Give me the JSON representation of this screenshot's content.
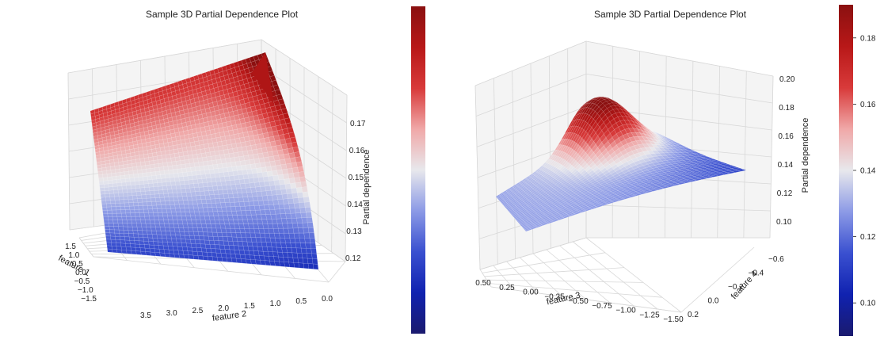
{
  "colors": {
    "colormap": [
      "#1a1a6e",
      "#1022b0",
      "#3a50d0",
      "#8c9ae6",
      "#e8e8ec",
      "#f0a8a8",
      "#d83a3a",
      "#b81818",
      "#8a1010"
    ],
    "background": "#ffffff",
    "grid": "#d8d8d8"
  },
  "chart_data": [
    {
      "type": "surface3d",
      "title": "Sample 3D Partial Dependence Plot",
      "xlabel": "feature 1",
      "ylabel": "feature 2",
      "zlabel": "Partial dependence",
      "x_ticks": [
        "1.5",
        "1.0",
        "0.5",
        "0.0",
        "−0.5",
        "−1.0",
        "−1.5"
      ],
      "y_ticks": [
        "3.5",
        "3.0",
        "2.5",
        "2.0",
        "1.5",
        "1.0",
        "0.5",
        "0.0"
      ],
      "z_ticks": [
        "0.12",
        "0.13",
        "0.14",
        "0.15",
        "0.16",
        "0.17"
      ],
      "xlim": [
        -1.5,
        1.5
      ],
      "ylim": [
        0.0,
        3.5
      ],
      "zlim": [
        0.115,
        0.175
      ],
      "surface_corners": {
        "feature1_low_feature2_high": 0.128,
        "feature1_high_feature2_high": 0.162,
        "feature1_high_feature2_low": 0.19,
        "feature1_low_feature2_low": 0.117
      },
      "colorbar": {
        "ticks": [],
        "range": [
          0.115,
          0.175
        ]
      },
      "grid": true
    },
    {
      "type": "surface3d",
      "title": "Sample 3D Partial Dependence Plot",
      "xlabel": "feature 3",
      "ylabel": "feature 4",
      "zlabel": "Partial dependence",
      "x_ticks": [
        "0.50",
        "0.25",
        "0.00",
        "−0.25",
        "−0.50",
        "−0.75",
        "−1.00",
        "−1.25",
        "−1.50"
      ],
      "y_ticks": [
        "−0.6",
        "−0.4",
        "−0.2",
        "0.0",
        "0.2"
      ],
      "z_ticks": [
        "0.10",
        "0.12",
        "0.14",
        "0.16",
        "0.18",
        "0.20"
      ],
      "xlim": [
        -1.5,
        0.5
      ],
      "ylim": [
        -0.6,
        0.2
      ],
      "zlim": [
        0.09,
        0.205
      ],
      "colorbar": {
        "ticks": [
          "0.10",
          "0.12",
          "0.14",
          "0.16",
          "0.18"
        ],
        "range": [
          0.09,
          0.19
        ]
      },
      "grid": true
    }
  ]
}
